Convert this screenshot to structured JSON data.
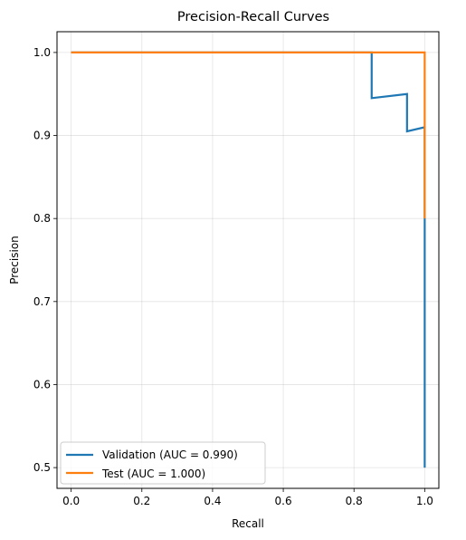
{
  "chart_data": {
    "type": "line",
    "title": "Precision-Recall Curves",
    "xlabel": "Recall",
    "ylabel": "Precision",
    "xlim": [
      -0.04,
      1.04
    ],
    "ylim": [
      0.475,
      1.025
    ],
    "xticks": [
      0.0,
      0.2,
      0.4,
      0.6,
      0.8,
      1.0
    ],
    "xtick_labels": [
      "0.0",
      "0.2",
      "0.4",
      "0.6",
      "0.8",
      "1.0"
    ],
    "yticks": [
      0.5,
      0.6,
      0.7,
      0.8,
      0.9,
      1.0
    ],
    "ytick_labels": [
      "0.5",
      "0.6",
      "0.7",
      "0.8",
      "0.9",
      "1.0"
    ],
    "grid": true,
    "legend_position": "lower-left",
    "series": [
      {
        "name": "Validation (AUC = 0.990)",
        "color": "#1f77b4",
        "points": [
          [
            0.0,
            1.0
          ],
          [
            0.85,
            1.0
          ],
          [
            0.85,
            0.945
          ],
          [
            0.95,
            0.95
          ],
          [
            0.95,
            0.905
          ],
          [
            1.0,
            0.91
          ],
          [
            1.0,
            0.5
          ]
        ]
      },
      {
        "name": "Test (AUC = 1.000)",
        "color": "#ff7f0e",
        "points": [
          [
            0.0,
            1.0
          ],
          [
            1.0,
            1.0
          ],
          [
            1.0,
            0.8
          ]
        ]
      }
    ]
  }
}
